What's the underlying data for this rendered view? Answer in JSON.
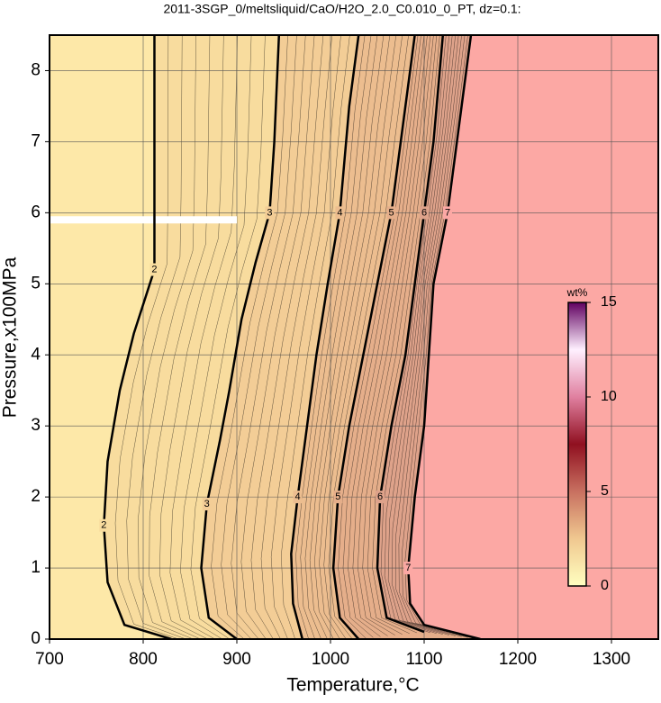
{
  "chart_data": {
    "type": "contour",
    "title": "2011-3SGP_0/meltsliquid/CaO/H2O_2.0_C0.010_0_PT, dz=0.1:",
    "xlabel": "Temperature,°C",
    "ylabel": "Pressure,x100MPa",
    "xlim": [
      700,
      1350
    ],
    "ylim": [
      0,
      8.5
    ],
    "xticks": [
      700,
      800,
      900,
      1000,
      1100,
      1200,
      1300
    ],
    "yticks": [
      0,
      1,
      2,
      3,
      4,
      5,
      6,
      7,
      8
    ],
    "grid": true,
    "background": "#fde8a8",
    "contours": [
      {
        "level": 2,
        "fill": "#f8dc9e",
        "x": [
          830,
          780,
          762,
          758,
          762,
          775,
          790,
          812,
          812,
          812
        ],
        "y": [
          0,
          0.2,
          0.8,
          1.6,
          2.5,
          3.5,
          4.3,
          5.2,
          6,
          8.5
        ]
      },
      {
        "level": 3,
        "fill": "#f3cd96",
        "x": [
          900,
          870,
          862,
          868,
          882,
          892,
          905,
          920,
          935,
          940,
          945
        ],
        "y": [
          0,
          0.3,
          1,
          1.9,
          2.8,
          3.5,
          4.5,
          5.3,
          6,
          7,
          8.5
        ]
      },
      {
        "level": 4,
        "fill": "#ecbd8f",
        "x": [
          970,
          960,
          958,
          965,
          975,
          985,
          997,
          1010,
          1020,
          1030
        ],
        "y": [
          0,
          0.5,
          1.2,
          2,
          3,
          4,
          5,
          6,
          7.5,
          8.5
        ]
      },
      {
        "level": 5,
        "fill": "#e5ae8a",
        "x": [
          1030,
          1010,
          1003,
          1008,
          1020,
          1035,
          1050,
          1065,
          1075,
          1090
        ],
        "y": [
          0,
          0.3,
          1,
          2,
          3,
          4,
          5,
          6,
          7,
          8.5
        ]
      },
      {
        "level": 6,
        "fill": "#dea28a",
        "x": [
          1100,
          1060,
          1050,
          1053,
          1065,
          1080,
          1090,
          1100,
          1110,
          1120
        ],
        "y": [
          0.1,
          0.3,
          1,
          2,
          3,
          4,
          5,
          6,
          7,
          8.5
        ]
      },
      {
        "level": 7,
        "fill": "#fca8a4",
        "x": [
          1160,
          1100,
          1085,
          1083,
          1090,
          1100,
          1105,
          1110,
          1125,
          1140,
          1150
        ],
        "y": [
          0,
          0.2,
          0.5,
          1,
          2,
          3,
          4,
          5,
          6,
          7.5,
          8.5
        ]
      }
    ],
    "colorbar": {
      "label": "wt%",
      "lim": [
        0,
        15
      ],
      "ticks": [
        0,
        5,
        10,
        15
      ],
      "colors": [
        "#ffffc0",
        "#f0c890",
        "#c87060",
        "#901020",
        "#e080a0",
        "#fff0ff",
        "#600060"
      ]
    }
  }
}
